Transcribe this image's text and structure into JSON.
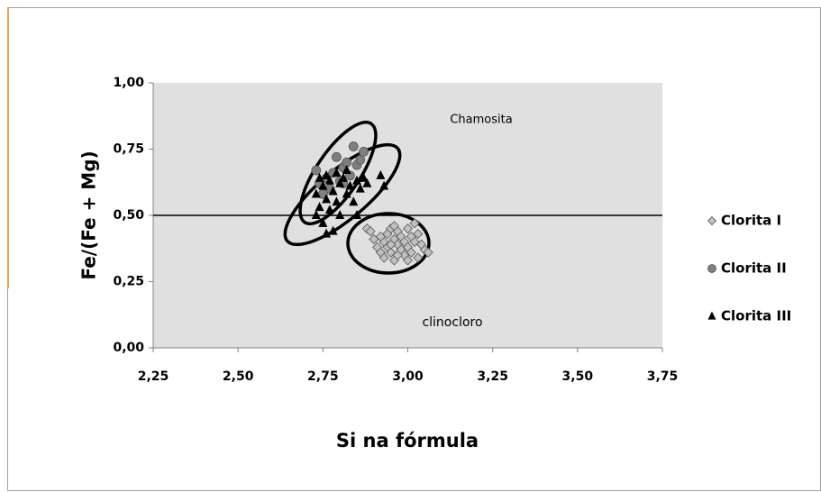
{
  "chart_data": {
    "type": "scatter",
    "xlabel": "Si na fórmula",
    "ylabel": "Fe/(Fe + Mg)",
    "annotations": [
      "Chamosita",
      "clinocloro"
    ],
    "hline": 0.5,
    "xlim": [
      2.25,
      3.75
    ],
    "ylim": [
      0,
      1
    ],
    "xticks": [
      {
        "value": 2.25,
        "label": "2,25"
      },
      {
        "value": 2.5,
        "label": "2,50"
      },
      {
        "value": 2.75,
        "label": "2,75"
      },
      {
        "value": 3,
        "label": "3,00"
      },
      {
        "value": 3.25,
        "label": "3,25"
      },
      {
        "value": 3.5,
        "label": "3,50"
      },
      {
        "value": 3.75,
        "label": "3,75"
      }
    ],
    "yticks": [
      {
        "value": 0,
        "label": "0,00"
      },
      {
        "value": 0.25,
        "label": "0,25"
      },
      {
        "value": 0.5,
        "label": "0,50"
      },
      {
        "value": 0.75,
        "label": "0,75"
      },
      {
        "value": 1,
        "label": "1,00"
      }
    ],
    "legend": "right",
    "series": [
      {
        "name": "Clorita I",
        "color": "#c0c0c0",
        "marker": "diamond",
        "x": [
          2.88,
          2.89,
          2.9,
          2.91,
          2.92,
          2.93,
          2.93,
          2.94,
          2.94,
          2.95,
          2.95,
          2.96,
          2.96,
          2.97,
          2.97,
          2.98,
          2.98,
          2.99,
          2.99,
          3.0,
          3.0,
          3.01,
          3.01,
          3.02,
          3.02,
          3.03,
          3.03,
          3.04,
          3.05,
          3.06,
          2.95,
          2.97,
          2.92,
          3.0,
          2.96
        ],
        "y": [
          0.45,
          0.44,
          0.41,
          0.38,
          0.36,
          0.4,
          0.34,
          0.43,
          0.38,
          0.45,
          0.36,
          0.41,
          0.33,
          0.39,
          0.44,
          0.37,
          0.42,
          0.35,
          0.4,
          0.45,
          0.38,
          0.42,
          0.36,
          0.47,
          0.4,
          0.43,
          0.34,
          0.39,
          0.37,
          0.36,
          0.39,
          0.35,
          0.42,
          0.33,
          0.46
        ]
      },
      {
        "name": "Clorita II",
        "color": "#7f7f7f",
        "marker": "circle",
        "x": [
          2.73,
          2.74,
          2.76,
          2.77,
          2.78,
          2.79,
          2.8,
          2.81,
          2.82,
          2.83,
          2.84,
          2.85,
          2.86,
          2.87,
          2.75,
          2.81
        ],
        "y": [
          0.67,
          0.62,
          0.64,
          0.6,
          0.66,
          0.72,
          0.63,
          0.68,
          0.7,
          0.65,
          0.76,
          0.69,
          0.71,
          0.74,
          0.58,
          0.62
        ]
      },
      {
        "name": "Clorita III",
        "color": "#000000",
        "marker": "triangle",
        "x": [
          2.73,
          2.73,
          2.74,
          2.75,
          2.75,
          2.76,
          2.76,
          2.77,
          2.77,
          2.78,
          2.78,
          2.79,
          2.79,
          2.8,
          2.8,
          2.81,
          2.82,
          2.82,
          2.83,
          2.84,
          2.85,
          2.85,
          2.86,
          2.87,
          2.88,
          2.92,
          2.93,
          2.76,
          2.74
        ],
        "y": [
          0.58,
          0.5,
          0.53,
          0.61,
          0.47,
          0.43,
          0.56,
          0.63,
          0.52,
          0.44,
          0.59,
          0.66,
          0.55,
          0.62,
          0.5,
          0.64,
          0.58,
          0.67,
          0.61,
          0.55,
          0.63,
          0.5,
          0.6,
          0.64,
          0.62,
          0.65,
          0.61,
          0.65,
          0.64
        ]
      }
    ]
  }
}
